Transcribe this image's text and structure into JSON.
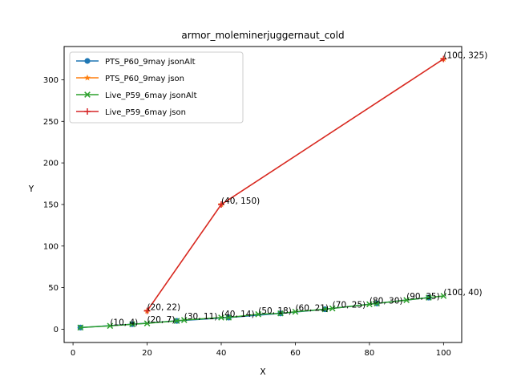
{
  "chart_data": {
    "type": "line",
    "title": "armor_moleminerjuggernaut_cold",
    "xlabel": "X",
    "ylabel": "Y",
    "xlim": [
      -2.4,
      104.9
    ],
    "ylim": [
      -16,
      340
    ],
    "xticks": [
      0,
      20,
      40,
      60,
      80,
      100
    ],
    "yticks": [
      0,
      50,
      100,
      150,
      200,
      250,
      300
    ],
    "legend_position": "top-left",
    "grid": false,
    "series": [
      {
        "name": "PTS_P60_9may jsonAlt",
        "marker": "circle",
        "color": "#1f77b4",
        "x": [
          2,
          16,
          28,
          42,
          56,
          68,
          82,
          96
        ],
        "y": [
          2,
          6,
          10,
          14,
          19,
          24,
          31,
          38
        ]
      },
      {
        "name": "PTS_P60_9may json",
        "marker": "star",
        "color": "#ff7f0e",
        "x": [
          20,
          40,
          100
        ],
        "y": [
          22,
          150,
          325
        ]
      },
      {
        "name": "Live_P59_6may jsonAlt",
        "marker": "x",
        "color": "#2ca02c",
        "x": [
          2,
          10,
          16,
          20,
          28,
          30,
          40,
          42,
          50,
          56,
          60,
          68,
          70,
          80,
          82,
          90,
          96,
          100
        ],
        "y": [
          2,
          4,
          6,
          7,
          10,
          11,
          14,
          14,
          18,
          19,
          21,
          24,
          25,
          30,
          31,
          35,
          38,
          40
        ]
      },
      {
        "name": "Live_P59_6may json",
        "marker": "plus",
        "color": "#d62728",
        "x": [
          20,
          40,
          100
        ],
        "y": [
          22,
          150,
          325
        ]
      }
    ],
    "annotations": [
      {
        "text": "(10, 4)",
        "x": 10,
        "y": 4
      },
      {
        "text": "(20, 7)",
        "x": 20,
        "y": 7
      },
      {
        "text": "(30, 11)",
        "x": 30,
        "y": 11
      },
      {
        "text": "(40, 14)",
        "x": 40,
        "y": 14
      },
      {
        "text": "(50, 18)",
        "x": 50,
        "y": 18
      },
      {
        "text": "(60, 21)",
        "x": 60,
        "y": 21
      },
      {
        "text": "(70, 25)",
        "x": 70,
        "y": 25
      },
      {
        "text": "(80, 30)",
        "x": 80,
        "y": 30
      },
      {
        "text": "(90, 35)",
        "x": 90,
        "y": 35
      },
      {
        "text": "(100, 40)",
        "x": 100,
        "y": 40
      },
      {
        "text": "(20, 22)",
        "x": 20,
        "y": 22
      },
      {
        "text": "(40, 150)",
        "x": 40,
        "y": 150
      },
      {
        "text": "(100, 325)",
        "x": 100,
        "y": 325
      }
    ]
  }
}
